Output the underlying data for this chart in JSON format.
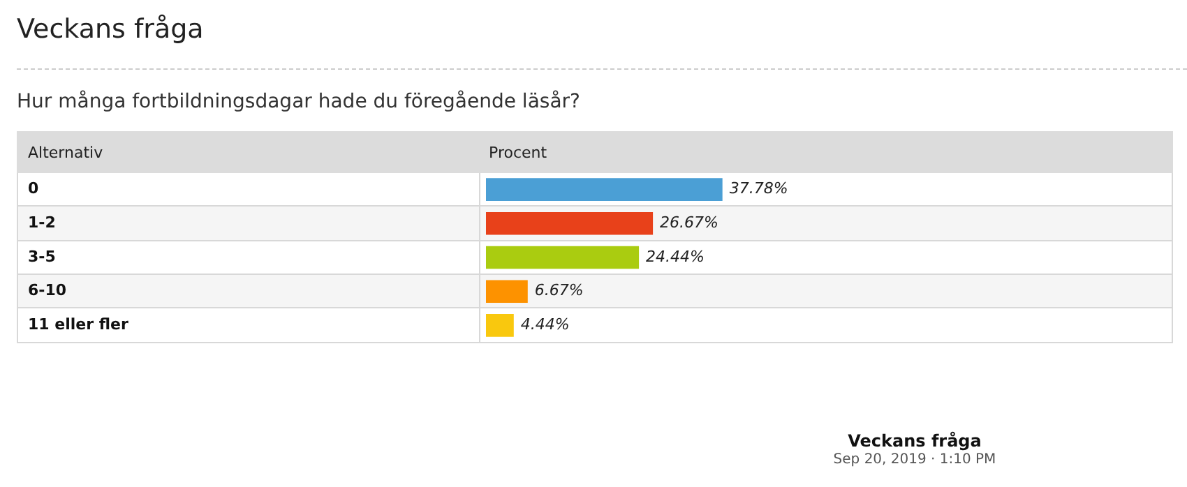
{
  "chart_data": {
    "type": "bar",
    "orientation": "horizontal",
    "title": "Veckans fråga",
    "subtitle": "Hur många fortbildningsdagar hade du föregående läsår?",
    "ylabel": "Alternativ",
    "xlabel": "Procent",
    "categories": [
      "0",
      "1-2",
      "3-5",
      "6-10",
      "11 eller fler"
    ],
    "values": [
      37.78,
      26.67,
      24.44,
      6.67,
      4.44
    ],
    "colors": [
      "#4b9fd5",
      "#e8411a",
      "#aacc10",
      "#fd9200",
      "#f9c80e"
    ],
    "value_labels": [
      "37.78%",
      "26.67%",
      "24.44%",
      "6.67%",
      "4.44%"
    ],
    "annotations": [
      "Veckans fråga",
      "Sep 20, 2019 · 1:10 PM"
    ],
    "legend": false,
    "tick_labels": "y"
  }
}
